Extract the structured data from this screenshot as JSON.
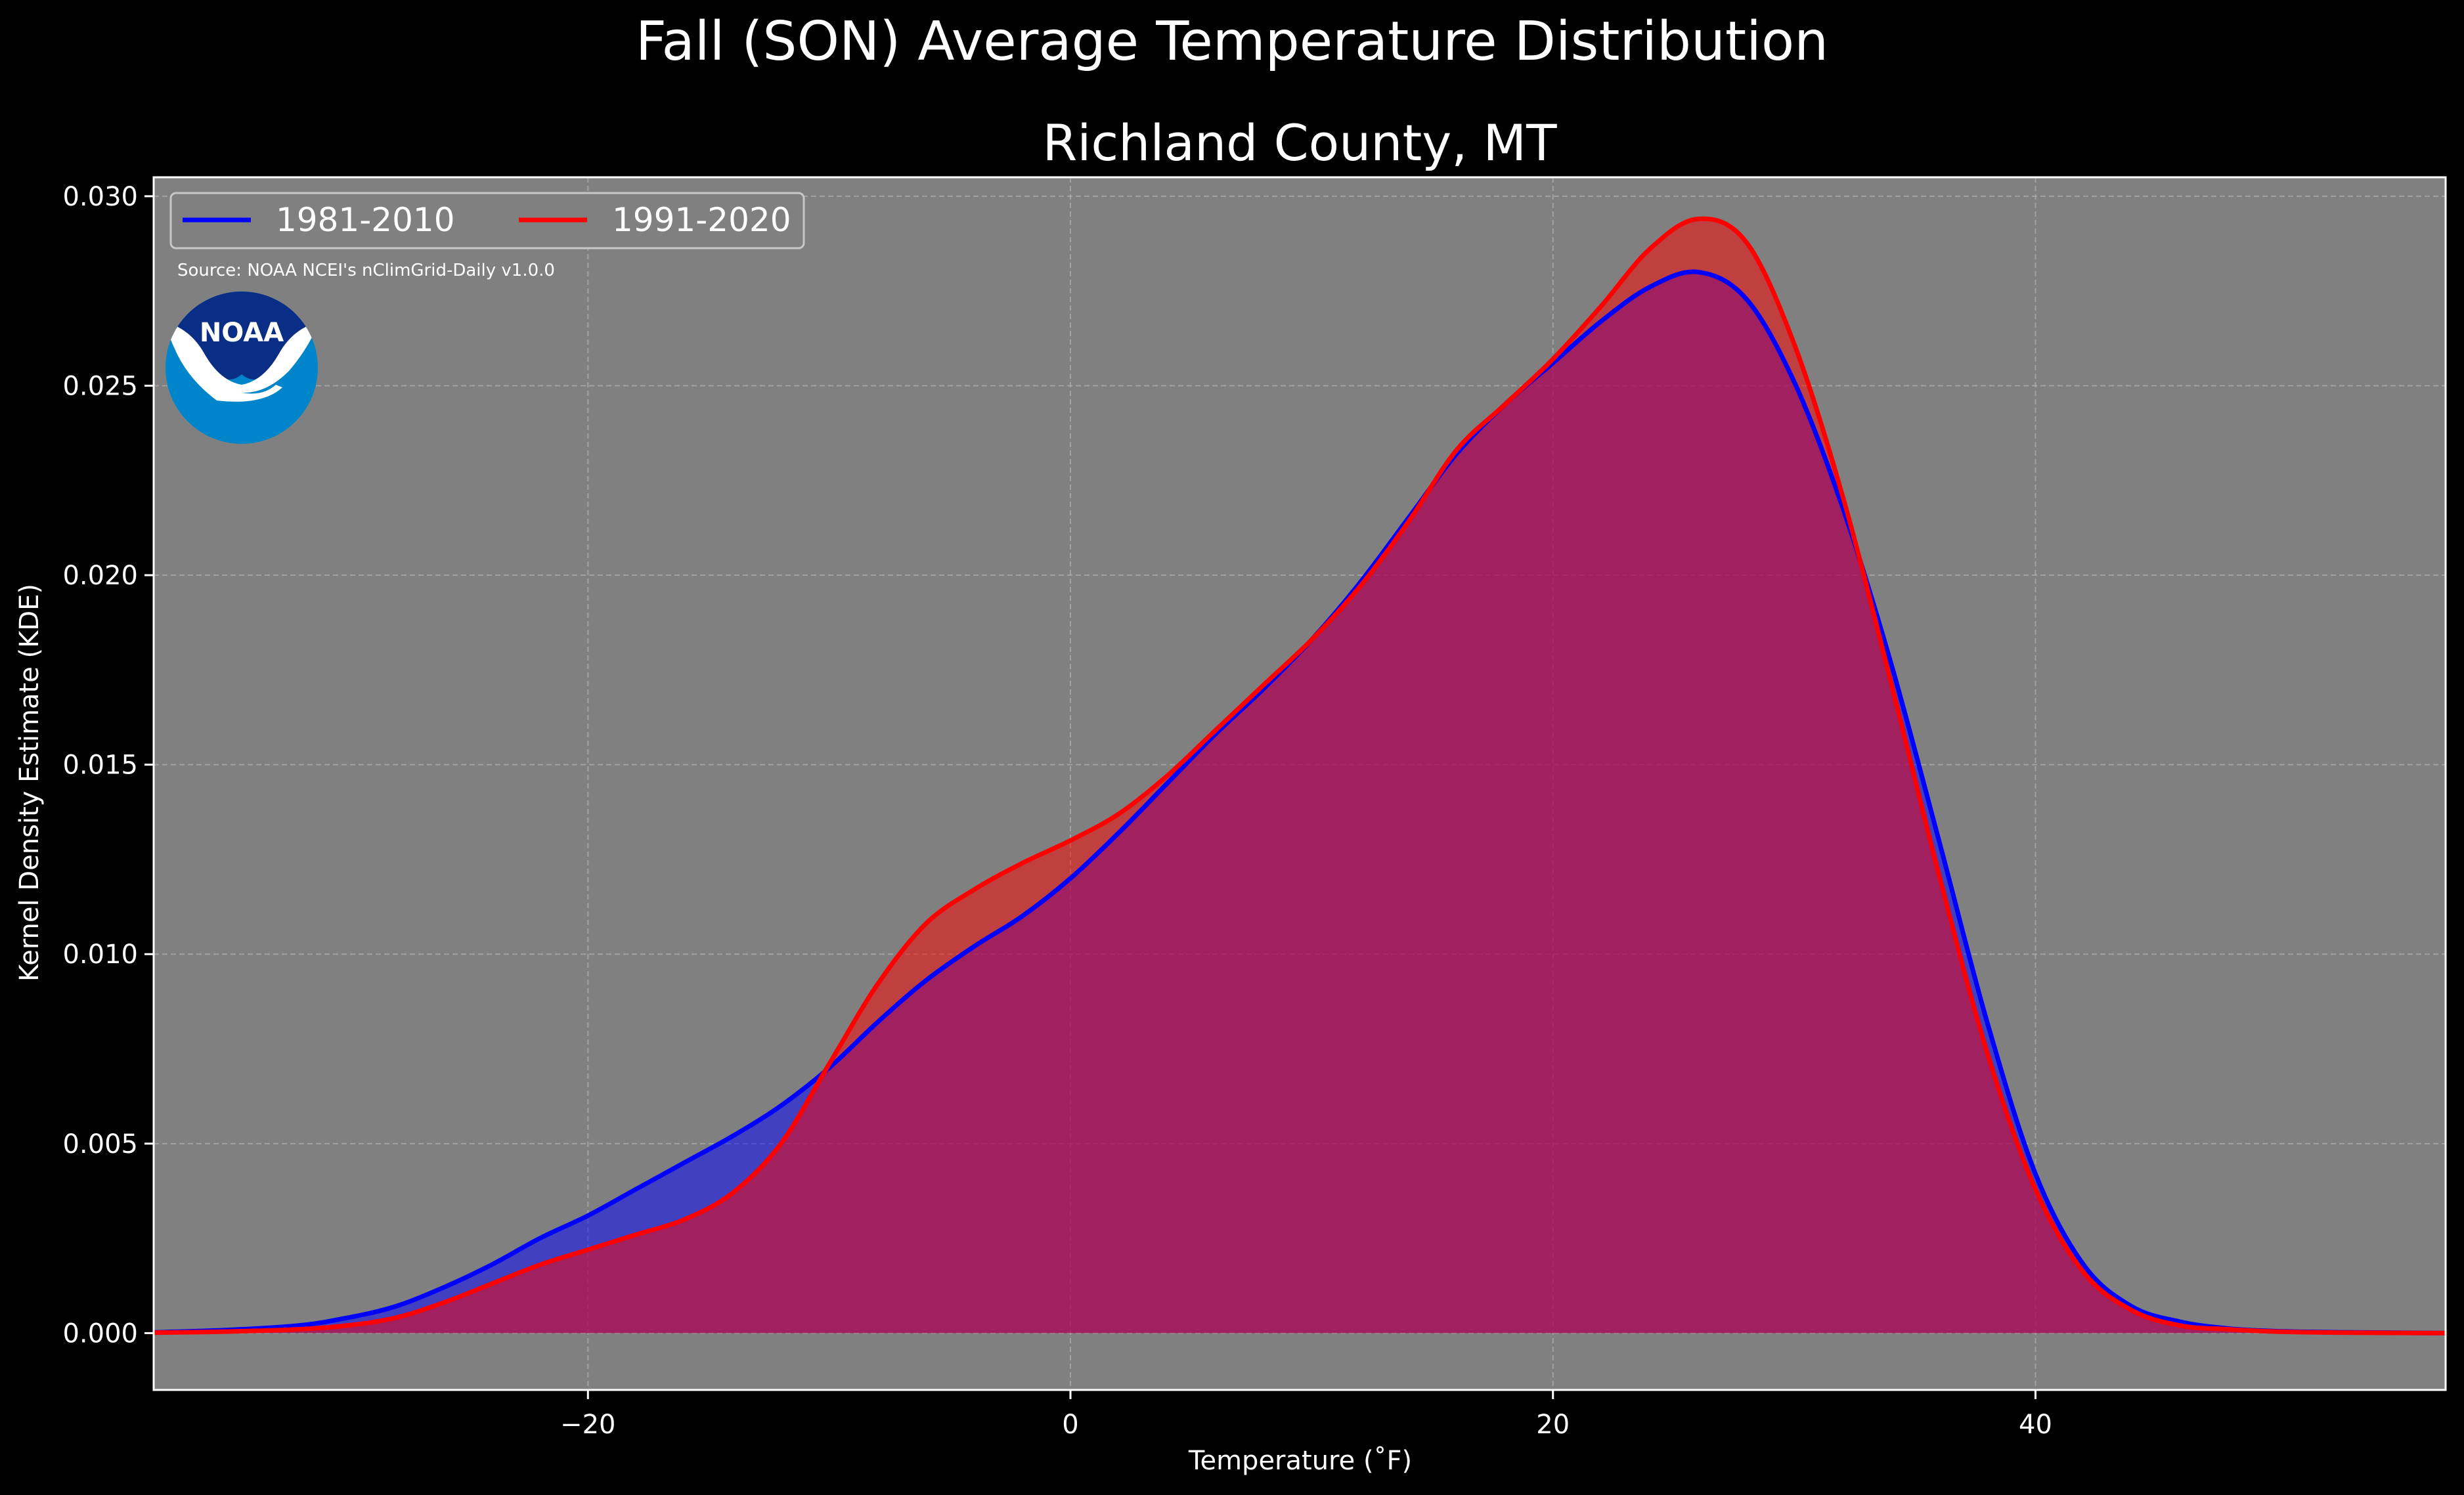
{
  "chart_data": {
    "type": "area",
    "title": "Fall (SON) Average Temperature Distribution",
    "subtitle": "Richland County, MT",
    "xlabel": "Temperature (˚F)",
    "ylabel": "Kernel Density Estimate (KDE)",
    "xlim": [
      -38,
      57
    ],
    "ylim": [
      -0.0015,
      0.0305
    ],
    "xticks": [
      -20,
      0,
      20,
      40
    ],
    "xtick_labels": [
      "−20",
      "0",
      "20",
      "40"
    ],
    "yticks": [
      0.0,
      0.005,
      0.01,
      0.015,
      0.02,
      0.025,
      0.03
    ],
    "ytick_labels": [
      "0.000",
      "0.005",
      "0.010",
      "0.015",
      "0.020",
      "0.025",
      "0.030"
    ],
    "grid": true,
    "background_color": "#808080",
    "legend_position": "top-left",
    "annotation": "Source: NOAA NCEI's nClimGrid-Daily v1.0.0",
    "series": [
      {
        "name": "1981-2010",
        "color": "#0000ff",
        "fill_color": "#0000ff",
        "x": [
          -38,
          -35,
          -32,
          -30,
          -28,
          -26,
          -24,
          -22,
          -20,
          -18,
          -16,
          -14,
          -12,
          -10,
          -8,
          -6,
          -4,
          -2,
          0,
          2,
          4,
          6,
          8,
          10,
          12,
          14,
          16,
          18,
          20,
          22,
          24,
          26,
          28,
          30,
          32,
          34,
          36,
          38,
          40,
          42,
          44,
          46,
          48,
          50,
          53,
          57
        ],
        "y": [
          2e-05,
          8e-05,
          0.0002,
          0.0004,
          0.0007,
          0.0012,
          0.0018,
          0.0025,
          0.0031,
          0.0038,
          0.0045,
          0.0052,
          0.006,
          0.007,
          0.0082,
          0.0093,
          0.0102,
          0.011,
          0.012,
          0.0132,
          0.0145,
          0.0158,
          0.017,
          0.0183,
          0.0198,
          0.0215,
          0.0232,
          0.0245,
          0.0256,
          0.0267,
          0.0276,
          0.028,
          0.0273,
          0.0251,
          0.0218,
          0.0177,
          0.013,
          0.0082,
          0.0042,
          0.0018,
          0.0007,
          0.0003,
          0.00012,
          5e-05,
          2e-05,
          0.0
        ]
      },
      {
        "name": "1991-2020",
        "color": "#ff0000",
        "fill_color": "#ff0000",
        "x": [
          -38,
          -35,
          -32,
          -30,
          -28,
          -26,
          -24,
          -22,
          -20,
          -18,
          -16,
          -14,
          -12,
          -10,
          -8,
          -6,
          -4,
          -2,
          0,
          2,
          4,
          6,
          8,
          10,
          12,
          14,
          16,
          18,
          20,
          22,
          24,
          26,
          28,
          30,
          32,
          34,
          36,
          38,
          40,
          42,
          44,
          46,
          48,
          50,
          53,
          57
        ],
        "y": [
          1e-05,
          4e-05,
          0.0001,
          0.0002,
          0.0004,
          0.0008,
          0.0013,
          0.0018,
          0.0022,
          0.0026,
          0.003,
          0.0037,
          0.005,
          0.0071,
          0.0092,
          0.0108,
          0.0117,
          0.0124,
          0.013,
          0.0137,
          0.0147,
          0.0159,
          0.0171,
          0.0183,
          0.0197,
          0.0214,
          0.0233,
          0.0245,
          0.0257,
          0.0271,
          0.0286,
          0.0294,
          0.0288,
          0.0261,
          0.0221,
          0.0172,
          0.0121,
          0.0074,
          0.0038,
          0.0016,
          0.0006,
          0.0002,
          0.0001,
          4e-05,
          1e-05,
          0.0
        ]
      }
    ]
  },
  "logo": {
    "text": "NOAA",
    "color_dark": "#0a2d86",
    "color_light": "#0085ca"
  }
}
